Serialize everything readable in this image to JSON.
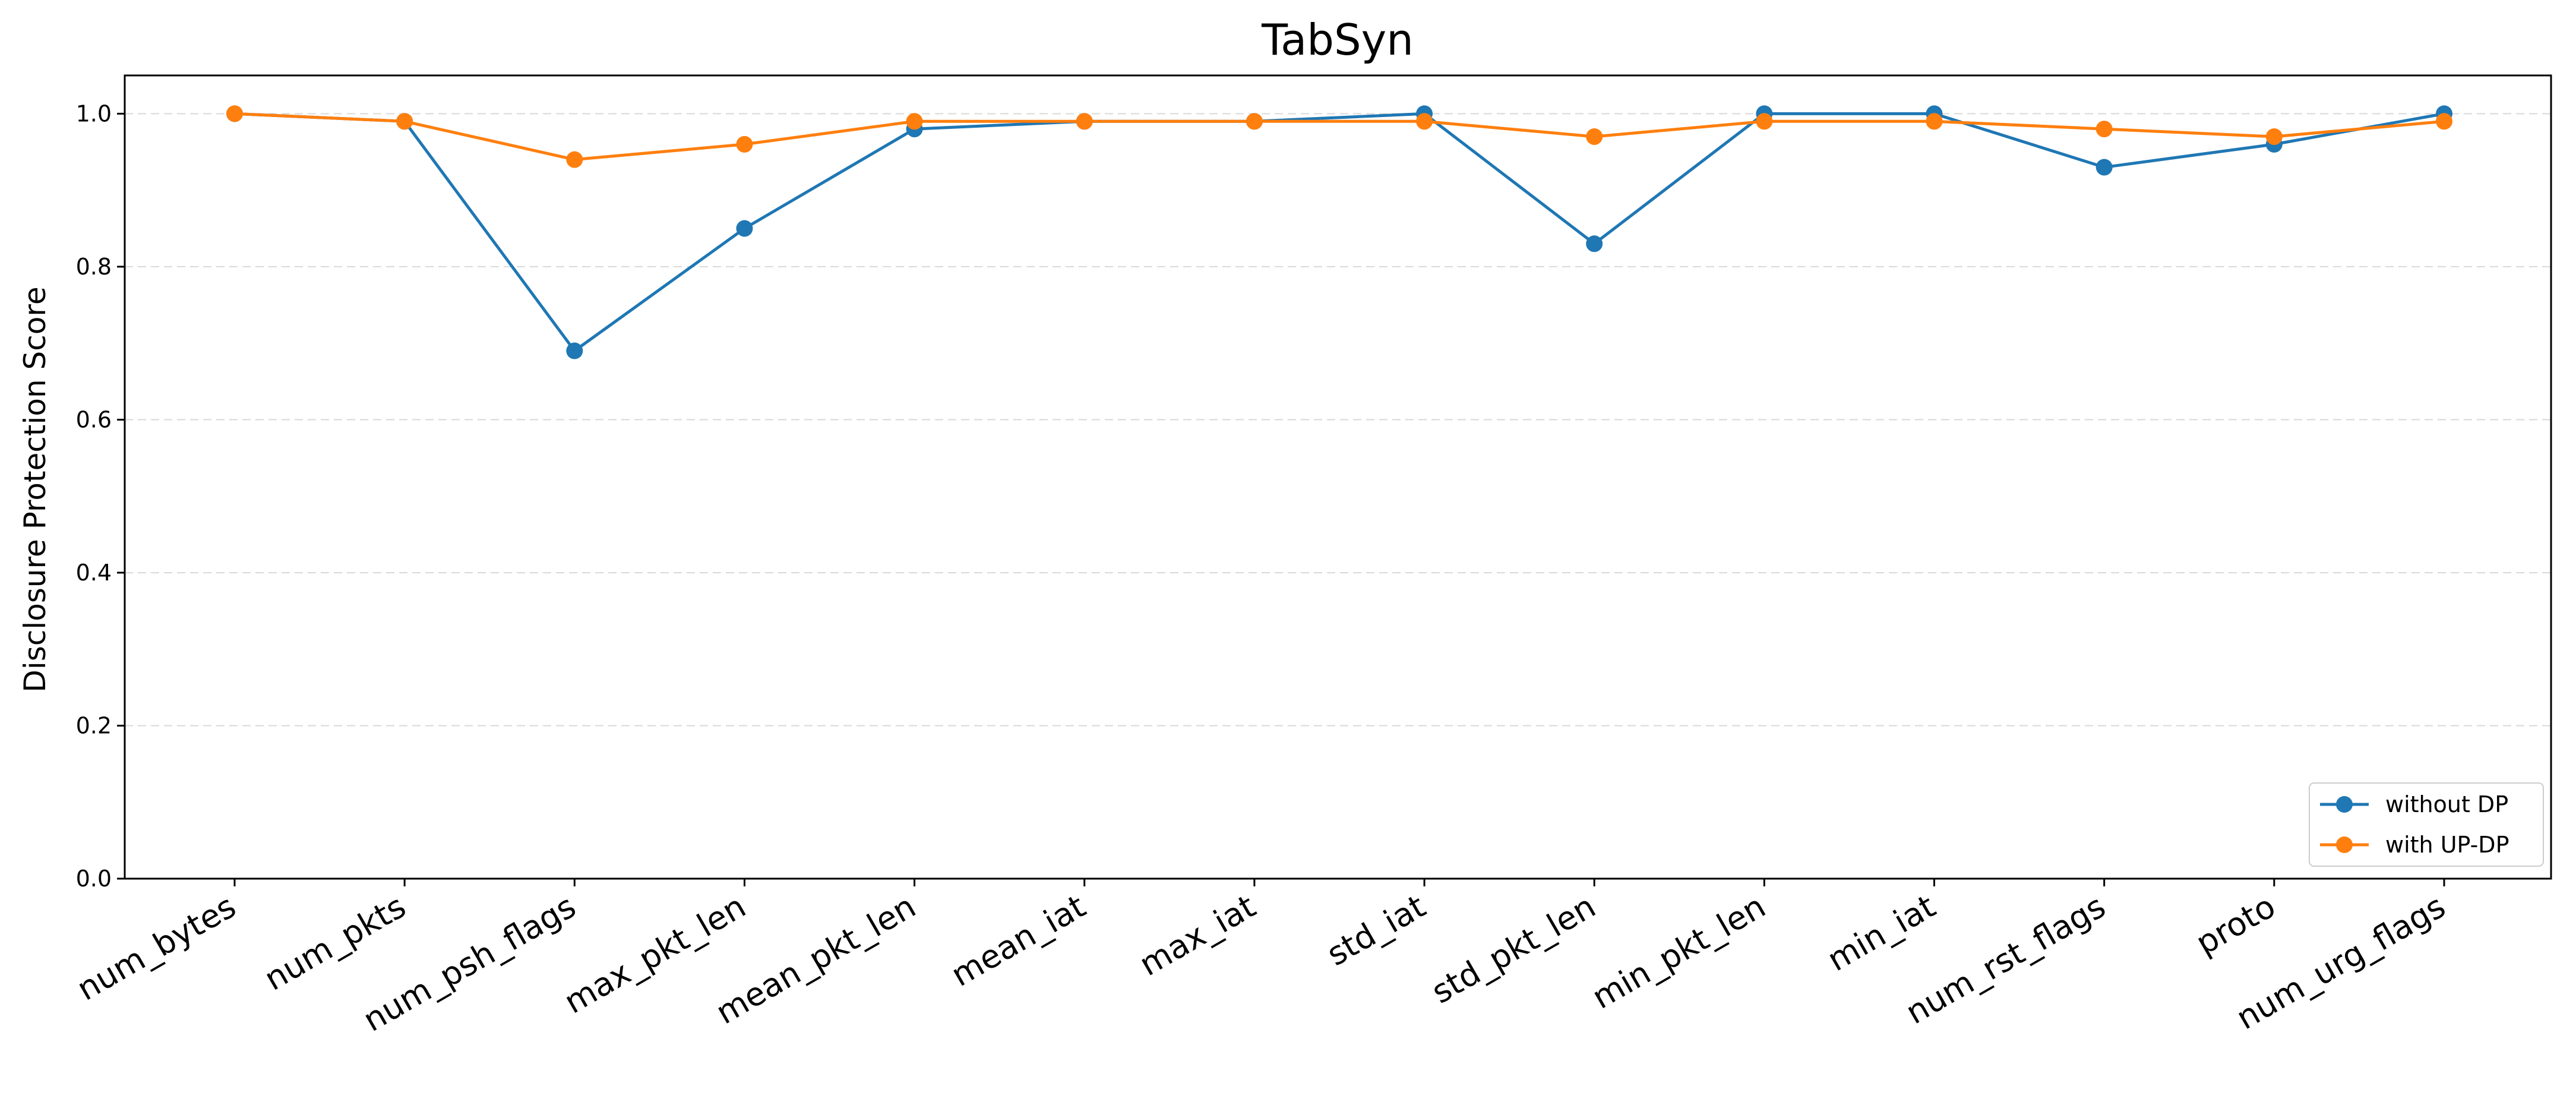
{
  "chart_data": {
    "type": "line",
    "title": "TabSyn",
    "xlabel": "",
    "ylabel": "Disclosure Protection Score",
    "categories": [
      "num_bytes",
      "num_pkts",
      "num_psh_flags",
      "max_pkt_len",
      "mean_pkt_len",
      "mean_iat",
      "max_iat",
      "std_iat",
      "std_pkt_len",
      "min_pkt_len",
      "min_iat",
      "num_rst_flags",
      "proto",
      "num_urg_flags"
    ],
    "ylim": [
      0.0,
      1.05
    ],
    "yticks": [
      "0.0",
      "0.2",
      "0.4",
      "0.6",
      "0.8",
      "1.0"
    ],
    "grid": "horizontal dashed",
    "legend_position": "bottom-right",
    "series": [
      {
        "name": "without DP",
        "color": "#1f77b4",
        "values": [
          1.0,
          0.99,
          0.69,
          0.85,
          0.98,
          0.99,
          0.99,
          1.0,
          0.83,
          1.0,
          1.0,
          0.93,
          0.96,
          1.0
        ]
      },
      {
        "name": "with UP-DP",
        "color": "#ff7f0e",
        "values": [
          1.0,
          0.99,
          0.94,
          0.96,
          0.99,
          0.99,
          0.99,
          0.99,
          0.97,
          0.99,
          0.99,
          0.98,
          0.97,
          0.99
        ]
      }
    ]
  }
}
